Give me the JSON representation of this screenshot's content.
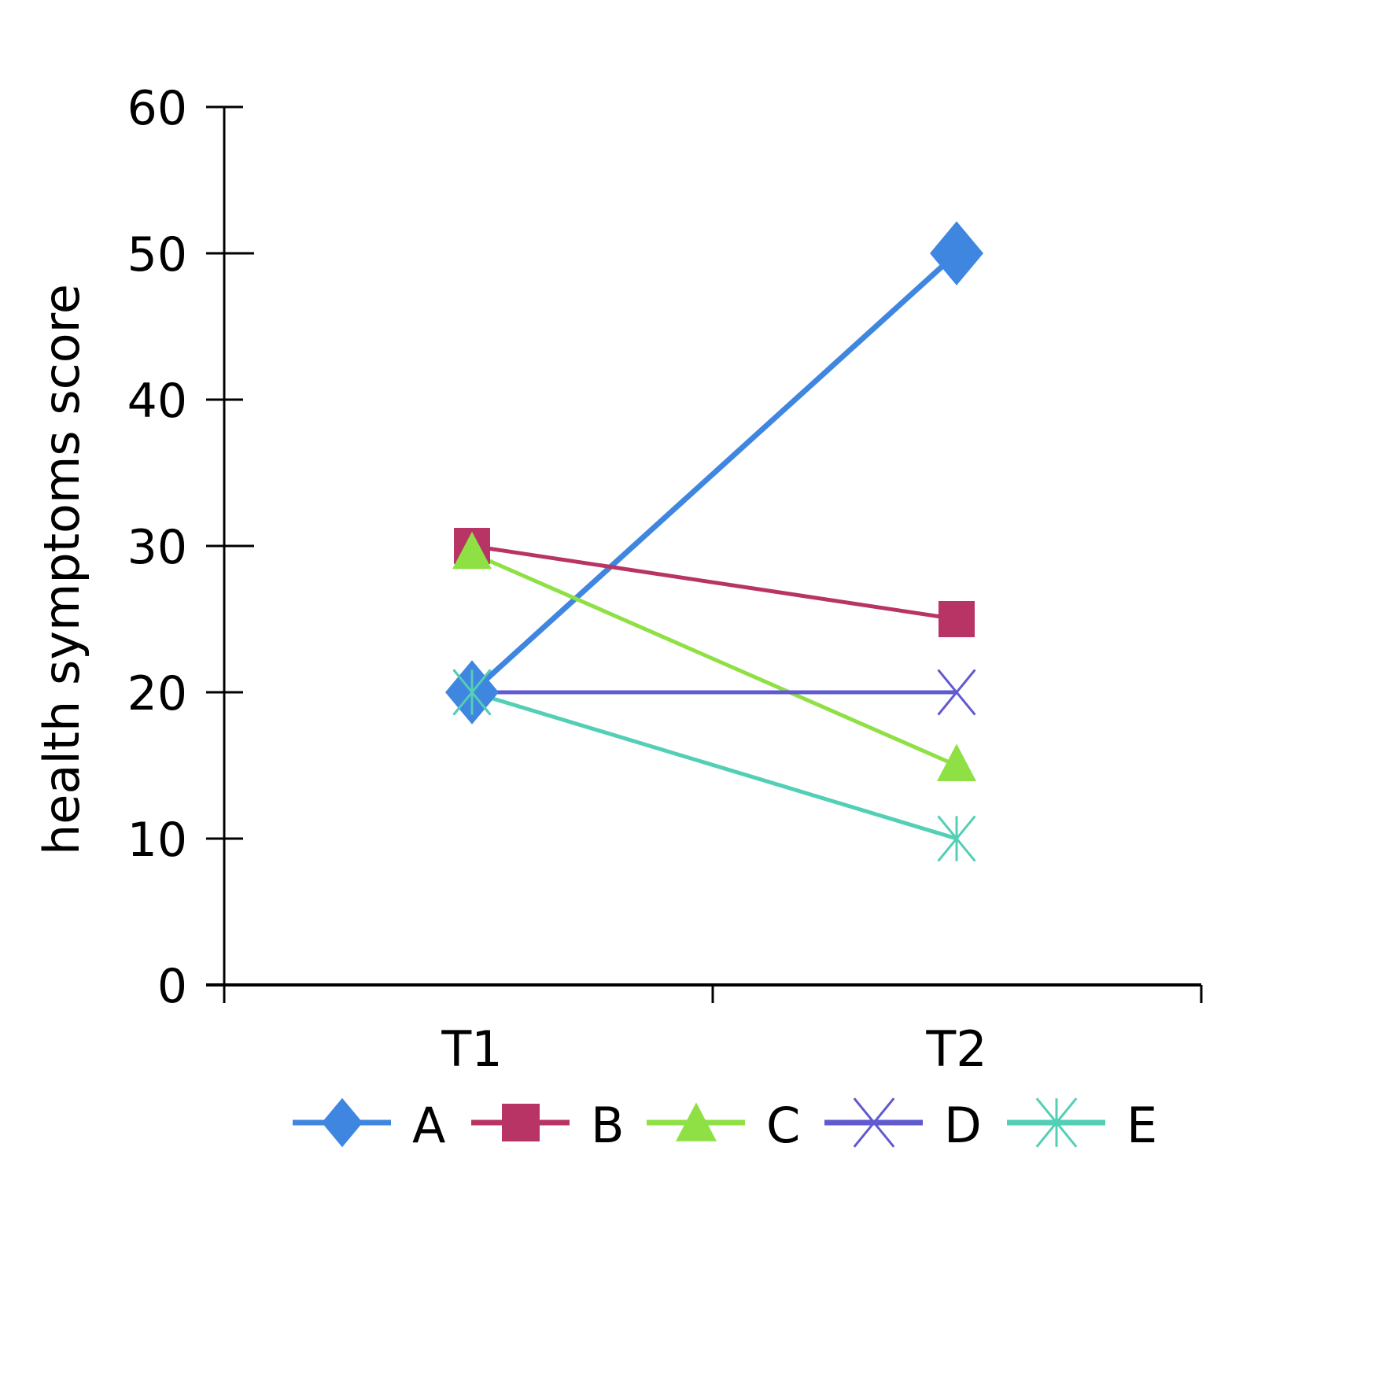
{
  "chart_data": {
    "type": "line",
    "title": "",
    "xlabel": "",
    "ylabel": "health symptoms score",
    "categories": [
      "T1",
      "T2"
    ],
    "ylim": [
      0,
      60
    ],
    "yticks": [
      0,
      10,
      20,
      30,
      40,
      50,
      60
    ],
    "grid": false,
    "legend_position": "bottom",
    "series": [
      {
        "name": "A",
        "values": [
          20,
          50
        ],
        "color": "#3f86e0",
        "marker": "diamond"
      },
      {
        "name": "B",
        "values": [
          30,
          25
        ],
        "color": "#b83464",
        "marker": "square"
      },
      {
        "name": "C",
        "values": [
          29.5,
          15
        ],
        "color": "#8fe045",
        "marker": "triangle"
      },
      {
        "name": "D",
        "values": [
          20,
          20
        ],
        "color": "#6059d0",
        "marker": "x"
      },
      {
        "name": "E",
        "values": [
          20,
          10
        ],
        "color": "#52cfb5",
        "marker": "asterisk"
      }
    ]
  }
}
